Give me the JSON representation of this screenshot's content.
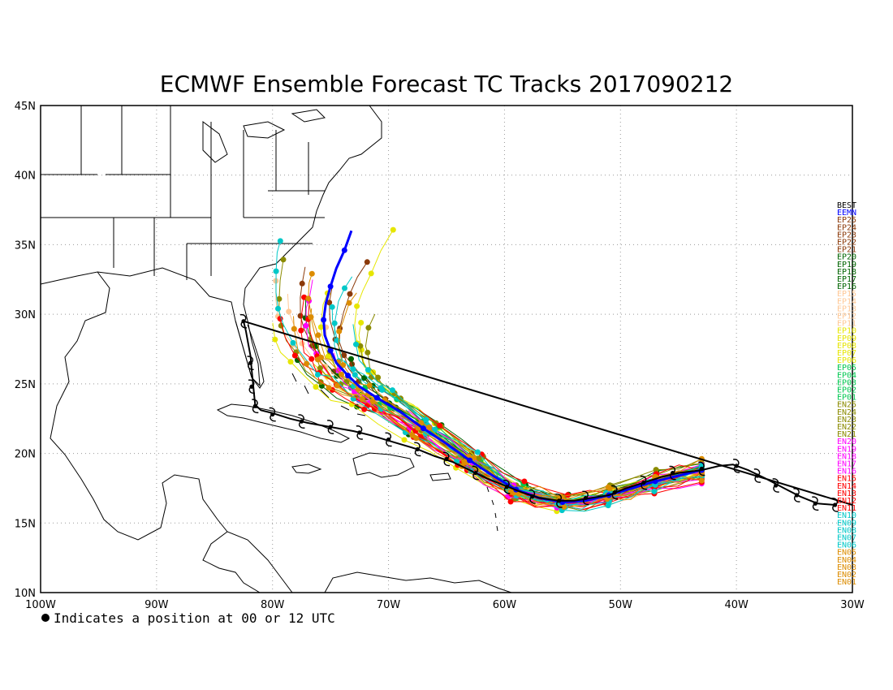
{
  "title": "ECMWF Ensemble Forecast TC Tracks 2017090212",
  "footnote": "Indicates a position at 00 or 12 UTC",
  "lon_ticks": [
    "100W",
    "90W",
    "80W",
    "70W",
    "60W",
    "50W",
    "40W",
    "30W"
  ],
  "lat_ticks": [
    "10N",
    "15N",
    "20N",
    "25N",
    "30N",
    "35N",
    "40N",
    "45N"
  ],
  "legend": [
    {
      "label": "BEST",
      "color": "#000000"
    },
    {
      "label": "EEMN",
      "color": "#0000ff"
    },
    {
      "label": "EP25",
      "color": "#8b3a0a"
    },
    {
      "label": "EP24",
      "color": "#8b3a0a"
    },
    {
      "label": "EP23",
      "color": "#8b3a0a"
    },
    {
      "label": "EP22",
      "color": "#8b3a0a"
    },
    {
      "label": "EP21",
      "color": "#8b3a0a"
    },
    {
      "label": "EP20",
      "color": "#006400"
    },
    {
      "label": "EP19",
      "color": "#006400"
    },
    {
      "label": "EP18",
      "color": "#006400"
    },
    {
      "label": "EP17",
      "color": "#006400"
    },
    {
      "label": "EP16",
      "color": "#006400"
    },
    {
      "label": "EP15",
      "color": "#ffc896"
    },
    {
      "label": "EP14",
      "color": "#ffc896"
    },
    {
      "label": "EP13",
      "color": "#ffc896"
    },
    {
      "label": "EP12",
      "color": "#ffc896"
    },
    {
      "label": "EP11",
      "color": "#ffc896"
    },
    {
      "label": "EP10",
      "color": "#e6e600"
    },
    {
      "label": "EP09",
      "color": "#e6e600"
    },
    {
      "label": "EP08",
      "color": "#e6e600"
    },
    {
      "label": "EP07",
      "color": "#e6e600"
    },
    {
      "label": "EP06",
      "color": "#e6e600"
    },
    {
      "label": "EP05",
      "color": "#00c850"
    },
    {
      "label": "EP04",
      "color": "#00c850"
    },
    {
      "label": "EP03",
      "color": "#00c850"
    },
    {
      "label": "EP02",
      "color": "#00c850"
    },
    {
      "label": "EP01",
      "color": "#00c850"
    },
    {
      "label": "EN25",
      "color": "#8b8b00"
    },
    {
      "label": "EN24",
      "color": "#8b8b00"
    },
    {
      "label": "EN23",
      "color": "#8b8b00"
    },
    {
      "label": "EN22",
      "color": "#8b8b00"
    },
    {
      "label": "EN21",
      "color": "#8b8b00"
    },
    {
      "label": "EN20",
      "color": "#ff00ff"
    },
    {
      "label": "EN19",
      "color": "#ff00ff"
    },
    {
      "label": "EN18",
      "color": "#ff00ff"
    },
    {
      "label": "EN17",
      "color": "#ff00ff"
    },
    {
      "label": "EN16",
      "color": "#ff00ff"
    },
    {
      "label": "EN15",
      "color": "#ff0000"
    },
    {
      "label": "EN14",
      "color": "#ff0000"
    },
    {
      "label": "EN13",
      "color": "#ff0000"
    },
    {
      "label": "EN12",
      "color": "#ff0000"
    },
    {
      "label": "EN11",
      "color": "#ff0000"
    },
    {
      "label": "EN10",
      "color": "#00c8c8"
    },
    {
      "label": "EN09",
      "color": "#00c8c8"
    },
    {
      "label": "EN08",
      "color": "#00c8c8"
    },
    {
      "label": "EN07",
      "color": "#00c8c8"
    },
    {
      "label": "EN06",
      "color": "#00c8c8"
    },
    {
      "label": "EN05",
      "color": "#dc8c00"
    },
    {
      "label": "EN04",
      "color": "#dc8c00"
    },
    {
      "label": "EN03",
      "color": "#dc8c00"
    },
    {
      "label": "EN02",
      "color": "#dc8c00"
    },
    {
      "label": "EN01",
      "color": "#dc8c00"
    }
  ],
  "best_track": {
    "color": "#000000",
    "symbol": "hurricane-symbol",
    "points": [
      [
        -31.5,
        16.3
      ],
      [
        -33,
        16.4
      ],
      [
        -34.5,
        16.9
      ],
      [
        -35.9,
        17.5
      ],
      [
        -37.5,
        18.2
      ],
      [
        -39,
        18.8
      ],
      [
        -40.3,
        19.2
      ],
      [
        -41.5,
        19.1
      ],
      [
        -43,
        18.8
      ],
      [
        -45,
        18.6
      ],
      [
        -46.5,
        18.3
      ],
      [
        -48,
        17.9
      ],
      [
        -49.5,
        17.5
      ],
      [
        -51,
        17.0
      ],
      [
        -52.5,
        16.8
      ],
      [
        -54,
        16.6
      ],
      [
        -55.3,
        16.6
      ],
      [
        -57,
        16.8
      ],
      [
        -58.5,
        17.2
      ],
      [
        -60,
        17.7
      ],
      [
        -61.5,
        18.2
      ],
      [
        -63,
        18.8
      ],
      [
        -64.5,
        19.4
      ],
      [
        -66,
        19.8
      ],
      [
        -67.5,
        20.3
      ],
      [
        -69.5,
        20.8
      ],
      [
        -71.5,
        21.3
      ],
      [
        -73,
        21.6
      ],
      [
        -75,
        21.9
      ],
      [
        -77,
        22.2
      ],
      [
        -78.5,
        22.5
      ],
      [
        -80,
        22.9
      ],
      [
        -81,
        23.1
      ],
      [
        -81.5,
        23.5
      ],
      [
        -81.6,
        24.3
      ],
      [
        -81.7,
        25.2
      ],
      [
        -81.8,
        26.0
      ],
      [
        -81.9,
        27.0
      ],
      [
        -82.1,
        27.9
      ],
      [
        -82.3,
        28.8
      ],
      [
        -82.5,
        29.5
      ]
    ],
    "symbol_points": [
      [
        -31.5,
        16.3
      ],
      [
        -33.2,
        16.4
      ],
      [
        -34.8,
        17.0
      ],
      [
        -36.6,
        17.7
      ],
      [
        -38.2,
        18.4
      ],
      [
        -40.0,
        19.1
      ],
      [
        -43.0,
        18.9
      ],
      [
        -45.5,
        18.6
      ],
      [
        -48.0,
        17.9
      ],
      [
        -50.5,
        17.2
      ],
      [
        -53.0,
        16.8
      ],
      [
        -55.3,
        16.6
      ],
      [
        -57.6,
        16.9
      ],
      [
        -59.8,
        17.6
      ],
      [
        -62.5,
        18.6
      ],
      [
        -65.0,
        19.6
      ],
      [
        -67.5,
        20.3
      ],
      [
        -70.0,
        21.0
      ],
      [
        -72.5,
        21.5
      ],
      [
        -75.0,
        21.9
      ],
      [
        -77.5,
        22.3
      ],
      [
        -80.0,
        22.8
      ],
      [
        -81.5,
        23.4
      ],
      [
        -81.8,
        24.8
      ],
      [
        -81.9,
        26.5
      ],
      [
        -82.5,
        29.5
      ]
    ]
  },
  "ensemble_mean": {
    "color": "#0000ff",
    "points": [
      [
        -43,
        18.8
      ],
      [
        -45,
        18.4
      ],
      [
        -47,
        18.0
      ],
      [
        -49,
        17.5
      ],
      [
        -51,
        17.0
      ],
      [
        -53,
        16.6
      ],
      [
        -55,
        16.5
      ],
      [
        -57,
        16.8
      ],
      [
        -59,
        17.4
      ],
      [
        -61,
        18.4
      ],
      [
        -63,
        19.5
      ],
      [
        -65,
        20.7
      ],
      [
        -67,
        21.8
      ],
      [
        -69,
        23.0
      ],
      [
        -71,
        24.0
      ],
      [
        -72.5,
        24.8
      ],
      [
        -73.5,
        25.6
      ],
      [
        -74.5,
        26.5
      ],
      [
        -75,
        27.4
      ],
      [
        -75.5,
        28.5
      ],
      [
        -75.6,
        29.6
      ],
      [
        -75.4,
        30.8
      ],
      [
        -75,
        32
      ],
      [
        -74.5,
        33.3
      ],
      [
        -73.8,
        34.6
      ],
      [
        -73.2,
        36
      ]
    ]
  }
}
